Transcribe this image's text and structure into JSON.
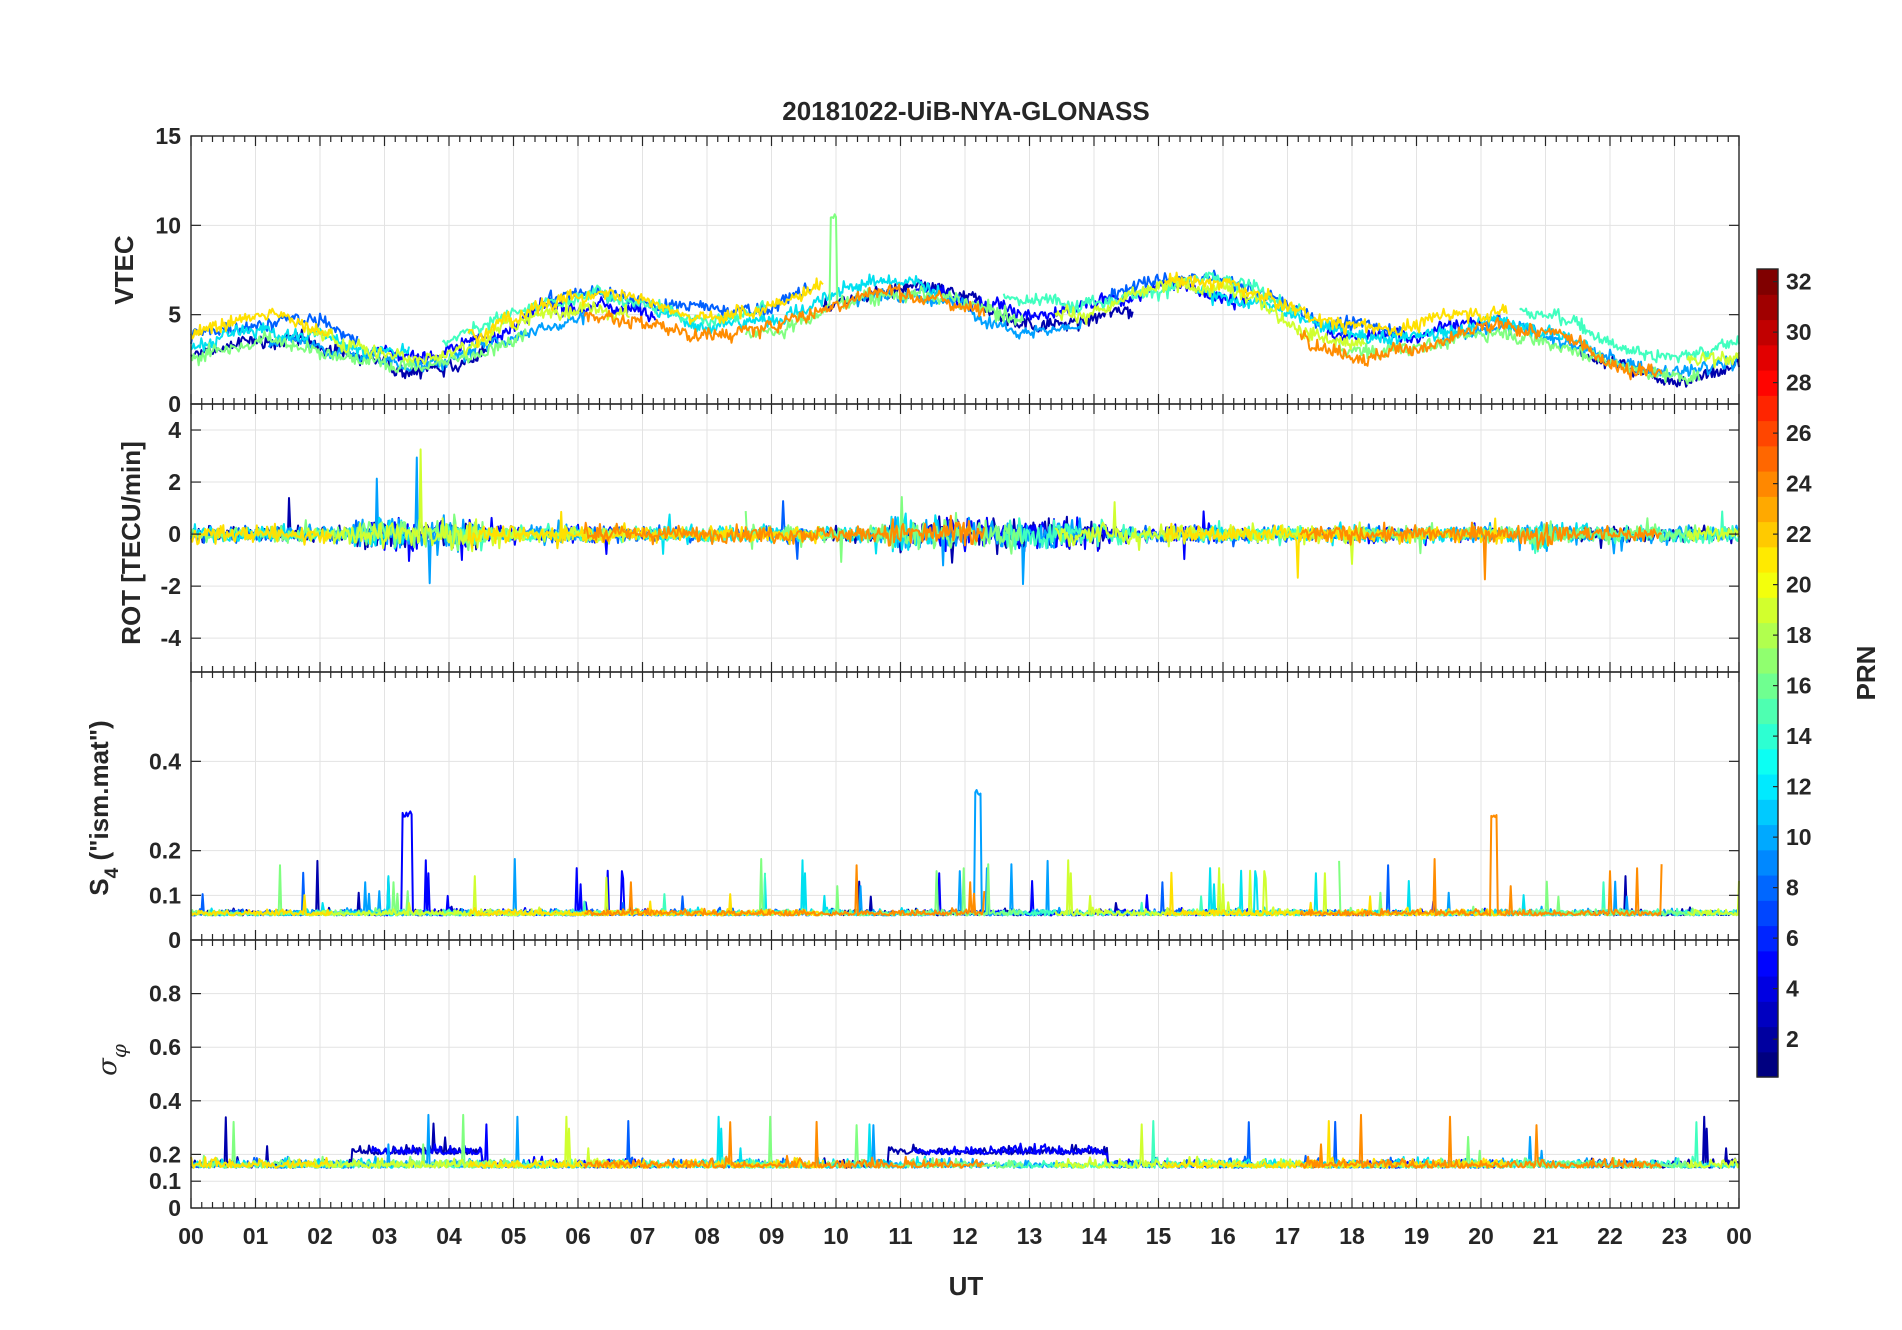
{
  "chart_data": {
    "type": "line",
    "title": "20181022-UiB-NYA-GLONASS",
    "xlabel": "UT",
    "x_unit": "hours UT",
    "xlim": [
      0,
      24
    ],
    "x_tick_values": [
      0,
      1,
      2,
      3,
      4,
      5,
      6,
      7,
      8,
      9,
      10,
      11,
      12,
      13,
      14,
      15,
      16,
      17,
      18,
      19,
      20,
      21,
      22,
      23,
      24
    ],
    "x_tick_labels": [
      "00",
      "01",
      "02",
      "03",
      "04",
      "05",
      "06",
      "07",
      "08",
      "09",
      "10",
      "11",
      "12",
      "13",
      "14",
      "15",
      "16",
      "17",
      "18",
      "19",
      "20",
      "21",
      "22",
      "23",
      "00"
    ],
    "panels": [
      {
        "id": "vtec",
        "ylabel": "VTEC",
        "ylim": [
          0,
          15
        ],
        "y_ticks": [
          0,
          5,
          10,
          15
        ],
        "y_tick_labels": [
          "0",
          "5",
          "10",
          "15"
        ],
        "description": "Vertical total electron content per satellite; mostly 2-8 TECU, peak ~10.5 at 10 UT"
      },
      {
        "id": "rot",
        "ylabel": "ROT [TECU/min]",
        "ylim": [
          -5.3,
          5
        ],
        "y_ticks": [
          -4,
          -2,
          0,
          2,
          4
        ],
        "y_tick_labels": [
          "-4",
          "-2",
          "0",
          "2",
          "4"
        ],
        "description": "Rate of TEC, fluctuating around 0 within about ±3 TECU/min"
      },
      {
        "id": "s4",
        "ylabel_main": "S",
        "ylabel_sub": "4",
        "ylabel_rest": " (\"ism.mat\")",
        "ylim": [
          0,
          0.6
        ],
        "y_ticks": [
          0,
          0.1,
          0.2,
          0.4
        ],
        "y_tick_labels": [
          "0",
          "0.1",
          "0.2",
          "0.4"
        ],
        "description": "Amplitude scintillation index, baseline ~0.05, spikes up to ~0.35"
      },
      {
        "id": "sigma_phi",
        "ylabel_main": "σ",
        "ylabel_sub": "φ",
        "ylim": [
          0,
          1
        ],
        "y_ticks": [
          0,
          0.1,
          0.2,
          0.4,
          0.6,
          0.8
        ],
        "y_tick_labels": [
          "0",
          "0.1",
          "0.2",
          "0.4",
          "0.6",
          "0.8"
        ],
        "description": "Phase scintillation index, baseline ~0.15, spikes to ~0.4"
      }
    ],
    "series": [
      {
        "prn": 2,
        "color": "#0000AD"
      },
      {
        "prn": 4,
        "color": "#0000FF"
      },
      {
        "prn": 7,
        "color": "#0060FF"
      },
      {
        "prn": 9,
        "color": "#00A0FF"
      },
      {
        "prn": 12,
        "color": "#00E0F0"
      },
      {
        "prn": 15,
        "color": "#40FFBF"
      },
      {
        "prn": 17,
        "color": "#80FF80"
      },
      {
        "prn": 19,
        "color": "#D0FF30"
      },
      {
        "prn": 21,
        "color": "#FFE000"
      },
      {
        "prn": 24,
        "color": "#FF8C00"
      }
    ],
    "colorbar": {
      "label": "PRN",
      "range": [
        1,
        32
      ],
      "ticks": [
        2,
        4,
        6,
        8,
        10,
        12,
        14,
        16,
        18,
        20,
        22,
        24,
        26,
        28,
        30,
        32
      ],
      "tick_labels": [
        "2",
        "4",
        "6",
        "8",
        "10",
        "12",
        "14",
        "16",
        "18",
        "20",
        "22",
        "24",
        "26",
        "28",
        "30",
        "32"
      ],
      "colormap": "jet"
    }
  }
}
